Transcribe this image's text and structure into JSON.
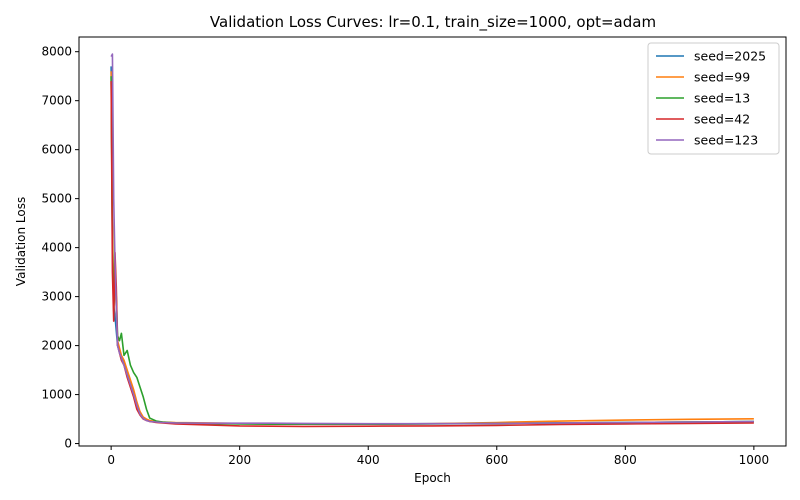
{
  "chart_data": {
    "type": "line",
    "title": "Validation Loss Curves: lr=0.1, train_size=1000, opt=adam",
    "xlabel": "Epoch",
    "ylabel": "Validation Loss",
    "xlim": [
      -50,
      1050
    ],
    "ylim": [
      -50,
      8300
    ],
    "xticks": [
      0,
      200,
      400,
      600,
      800,
      1000
    ],
    "yticks": [
      0,
      1000,
      2000,
      3000,
      4000,
      5000,
      6000,
      7000,
      8000
    ],
    "legend_position": "top-right",
    "grid": false,
    "series": [
      {
        "name": "seed=2025",
        "color": "#1f77b4",
        "x": [
          0,
          2,
          4,
          6,
          8,
          10,
          13,
          16,
          20,
          25,
          30,
          35,
          40,
          45,
          50,
          55,
          60,
          70,
          80,
          100,
          150,
          200,
          250,
          300,
          400,
          500,
          600,
          700,
          800,
          900,
          1000
        ],
        "y": [
          7700,
          4200,
          2800,
          2600,
          2300,
          2000,
          1900,
          1750,
          1650,
          1450,
          1250,
          1050,
          800,
          620,
          520,
          480,
          460,
          440,
          430,
          420,
          410,
          410,
          405,
          400,
          400,
          405,
          410,
          420,
          430,
          440,
          450
        ]
      },
      {
        "name": "seed=99",
        "color": "#ff7f0e",
        "x": [
          0,
          2,
          4,
          6,
          8,
          10,
          13,
          16,
          20,
          25,
          30,
          35,
          40,
          45,
          50,
          55,
          60,
          70,
          80,
          100,
          150,
          200,
          250,
          300,
          400,
          500,
          600,
          700,
          800,
          900,
          1000
        ],
        "y": [
          7600,
          4500,
          2900,
          3200,
          2800,
          2100,
          1950,
          1800,
          1700,
          1500,
          1300,
          1100,
          850,
          650,
          540,
          500,
          470,
          450,
          440,
          430,
          420,
          410,
          400,
          395,
          395,
          405,
          430,
          460,
          480,
          495,
          505
        ]
      },
      {
        "name": "seed=13",
        "color": "#2ca02c",
        "x": [
          0,
          2,
          4,
          6,
          8,
          10,
          13,
          16,
          20,
          25,
          30,
          35,
          40,
          45,
          50,
          55,
          60,
          70,
          80,
          100,
          150,
          200,
          250,
          300,
          400,
          500,
          600,
          700,
          800,
          900,
          1000
        ],
        "y": [
          7500,
          4000,
          2700,
          3300,
          3000,
          2200,
          2100,
          2250,
          1800,
          1900,
          1600,
          1450,
          1350,
          1150,
          950,
          700,
          520,
          460,
          440,
          420,
          410,
          400,
          395,
          395,
          395,
          400,
          410,
          420,
          430,
          440,
          450
        ]
      },
      {
        "name": "seed=42",
        "color": "#d62728",
        "x": [
          0,
          2,
          4,
          6,
          8,
          10,
          13,
          16,
          20,
          25,
          30,
          35,
          40,
          45,
          50,
          55,
          60,
          70,
          80,
          100,
          150,
          200,
          250,
          300,
          400,
          500,
          600,
          700,
          800,
          900,
          1000
        ],
        "y": [
          7400,
          3500,
          2500,
          3900,
          3200,
          2000,
          1850,
          1700,
          1600,
          1350,
          1150,
          950,
          700,
          580,
          500,
          470,
          450,
          430,
          420,
          400,
          380,
          360,
          355,
          350,
          355,
          360,
          370,
          390,
          400,
          410,
          420
        ]
      },
      {
        "name": "seed=123",
        "color": "#9467bd",
        "x": [
          0,
          2,
          4,
          6,
          8,
          10,
          13,
          16,
          20,
          25,
          30,
          35,
          40,
          45,
          50,
          55,
          60,
          70,
          80,
          100,
          150,
          200,
          250,
          300,
          400,
          500,
          600,
          700,
          800,
          900,
          1000
        ],
        "y": [
          7900,
          7950,
          5000,
          3700,
          2800,
          2000,
          1850,
          1750,
          1600,
          1400,
          1200,
          1000,
          780,
          600,
          510,
          470,
          450,
          440,
          430,
          420,
          415,
          415,
          415,
          410,
          405,
          405,
          410,
          420,
          430,
          440,
          450
        ]
      }
    ]
  }
}
